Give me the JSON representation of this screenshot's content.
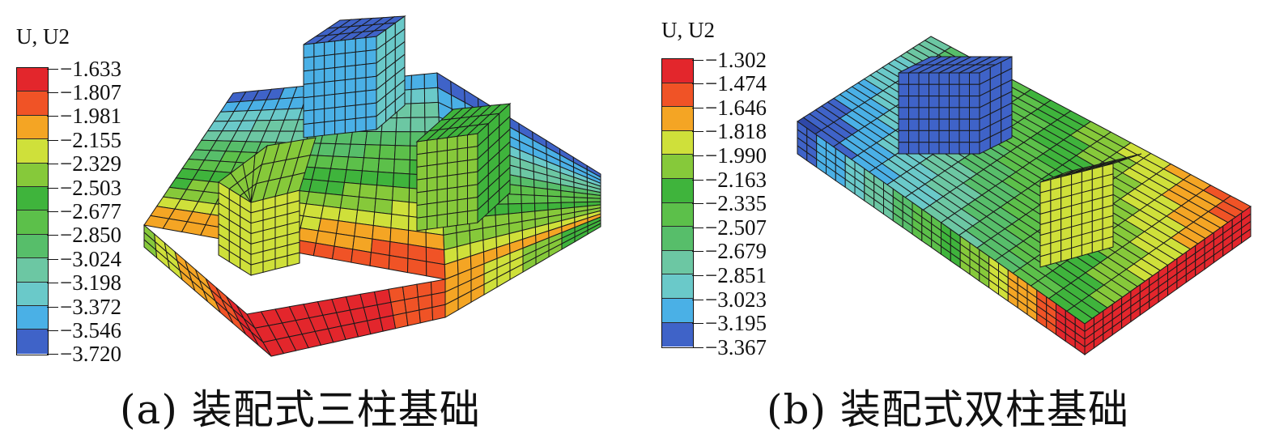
{
  "figures": [
    {
      "id": "a",
      "legend_title": "U, U2",
      "legend_values": [
        "−1.633",
        "−1.807",
        "−1.981",
        "−2.155",
        "−2.329",
        "−2.503",
        "−2.677",
        "−2.850",
        "−3.024",
        "−3.198",
        "−3.372",
        "−3.546",
        "−3.720"
      ],
      "caption": "(a) 装配式三柱基础"
    },
    {
      "id": "b",
      "legend_title": "U, U2",
      "legend_values": [
        "−1.302",
        "−1.474",
        "−1.646",
        "−1.818",
        "−1.990",
        "−2.163",
        "−2.335",
        "−2.507",
        "−2.679",
        "−2.851",
        "−3.023",
        "−3.195",
        "−3.367"
      ],
      "caption": "(b) 装配式双柱基础"
    }
  ],
  "colormap": [
    "#e3262c",
    "#f05326",
    "#f4a524",
    "#cfe03a",
    "#86c93a",
    "#3fb43c",
    "#5cc04a",
    "#57be6a",
    "#6cc7a3",
    "#6ac9c9",
    "#4ab0e6",
    "#3f63c8",
    "#2f48a8"
  ]
}
